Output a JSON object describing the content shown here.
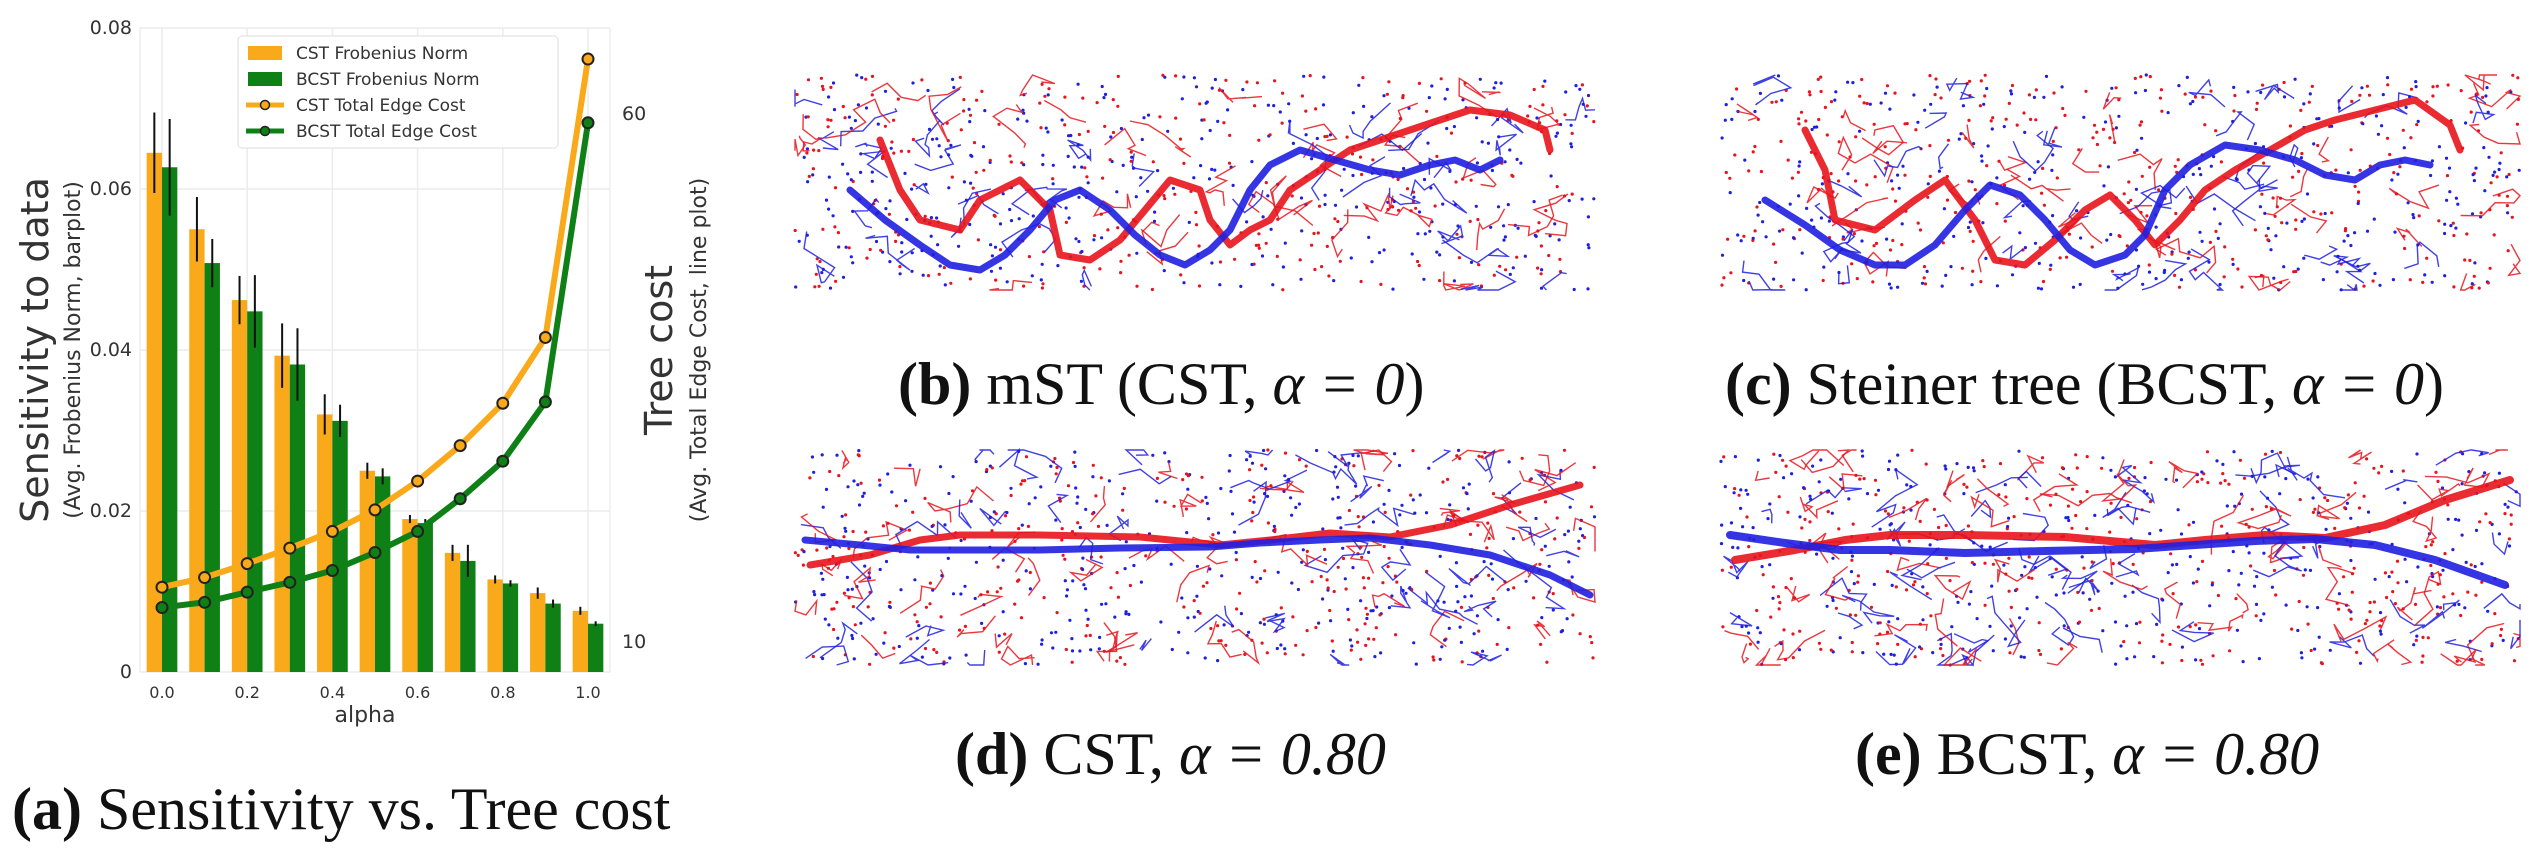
{
  "chart_data": {
    "type": "bar+line",
    "categories": [
      "0.0",
      "0.1",
      "0.2",
      "0.3",
      "0.4",
      "0.5",
      "0.6",
      "0.7",
      "0.8",
      "0.9",
      "1.0"
    ],
    "alpha": [
      0.0,
      0.1,
      0.2,
      0.3,
      0.4,
      0.5,
      0.6,
      0.7,
      0.8,
      0.9,
      1.0
    ],
    "bar_series": [
      {
        "name": "CST Frobenius Norm",
        "color": "#f9a91a",
        "values": [
          0.0645,
          0.055,
          0.0462,
          0.0393,
          0.032,
          0.025,
          0.019,
          0.0148,
          0.0115,
          0.0098,
          0.0076
        ],
        "errors": [
          0.005,
          0.004,
          0.003,
          0.004,
          0.0025,
          0.001,
          0.0005,
          0.001,
          0.0005,
          0.0007,
          0.0005
        ]
      },
      {
        "name": "BCST Frobenius Norm",
        "color": "#0e8015",
        "values": [
          0.0627,
          0.0508,
          0.0448,
          0.0382,
          0.0312,
          0.0243,
          0.0185,
          0.0138,
          0.011,
          0.0085,
          0.006
        ],
        "errors": [
          0.006,
          0.003,
          0.0045,
          0.0045,
          0.002,
          0.001,
          0.0005,
          0.002,
          0.0004,
          0.0005,
          0.0003
        ]
      }
    ],
    "line_series": [
      {
        "name": "CST Total Edge Cost",
        "color": "#f9a91a",
        "values": [
          12.0,
          12.4,
          13.0,
          13.7,
          14.5,
          15.6,
          17.2,
          19.4,
          22.4,
          28.0,
          72.0
        ]
      },
      {
        "name": "BCST Total Edge Cost",
        "color": "#0e8015",
        "values": [
          11.2,
          11.4,
          11.8,
          12.2,
          12.7,
          13.5,
          14.5,
          16.2,
          18.4,
          22.5,
          58.0
        ]
      }
    ],
    "xlabel": "alpha",
    "ylabel": "Sensitivity to data",
    "ylabel_sub": "(Avg. Frobenius Norm, barplot)",
    "y2label": "Tree cost",
    "y2label_sub": "(Avg. Total Edge Cost, line plot)",
    "ylim": [
      0,
      0.08
    ],
    "y2scale": "log",
    "y2lim": [
      9,
      80
    ],
    "yticks": [
      "0",
      "0.02",
      "0.04",
      "0.06",
      "0.08"
    ],
    "y2ticks": [
      "10",
      "60"
    ],
    "xticks": [
      "0.0",
      "0.2",
      "0.4",
      "0.6",
      "0.8",
      "1.0"
    ],
    "legend_position": "top-center",
    "grid": true
  },
  "captions": {
    "a": {
      "label": "(a)",
      "text": "Sensitivity vs. Tree cost"
    },
    "b": {
      "label": "(b)",
      "text": "mST (CST, ",
      "math": "α = 0",
      "close": ")"
    },
    "c": {
      "label": "(c)",
      "text": "Steiner tree (BCST, ",
      "math": "α = 0",
      "close": ")"
    },
    "d": {
      "label": "(d)",
      "text": "CST, ",
      "math": "α = 0.80"
    },
    "e": {
      "label": "(e)",
      "text": "BCST, ",
      "math": "α = 0.80"
    }
  },
  "colors": {
    "red": "#e8141c",
    "blue": "#1f1fe0",
    "orange": "#f9a91a",
    "green": "#0e8015"
  }
}
